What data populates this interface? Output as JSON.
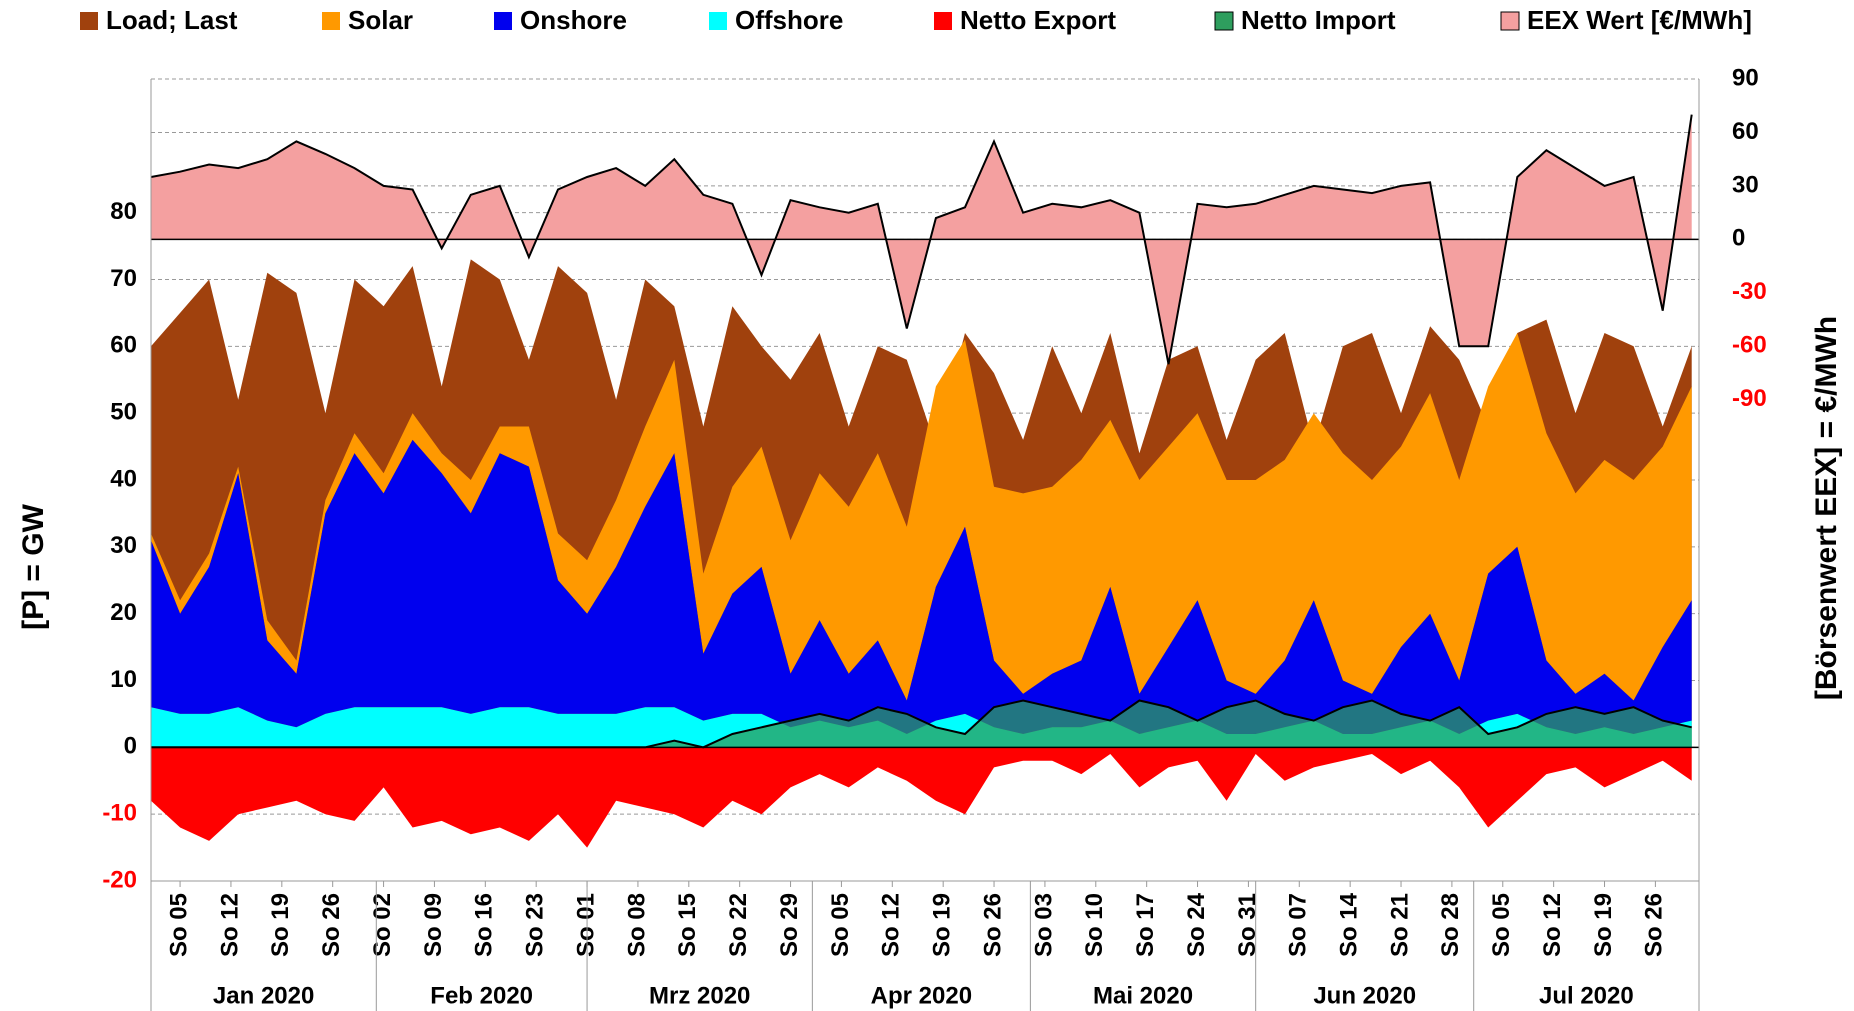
{
  "chart_data": {
    "type": "area",
    "x": [
      0,
      4,
      8,
      12,
      16,
      20,
      24,
      28,
      32,
      36,
      40,
      44,
      48,
      52,
      56,
      60,
      64,
      68,
      72,
      76,
      80,
      84,
      88,
      92,
      96,
      100,
      104,
      108,
      112,
      116,
      120,
      124,
      128,
      132,
      136,
      140,
      144,
      148,
      152,
      156,
      160,
      164,
      168,
      172,
      176,
      180,
      184,
      188,
      192,
      196,
      200,
      204,
      208,
      212
    ],
    "series": [
      {
        "name": "Load; Last",
        "color": "#a0410d",
        "values": [
          60,
          65,
          70,
          52,
          71,
          68,
          50,
          70,
          66,
          72,
          54,
          73,
          70,
          58,
          72,
          68,
          52,
          70,
          66,
          48,
          66,
          60,
          55,
          62,
          48,
          60,
          58,
          45,
          62,
          56,
          46,
          60,
          50,
          62,
          44,
          58,
          60,
          46,
          58,
          62,
          45,
          60,
          62,
          50,
          63,
          58,
          48,
          62,
          64,
          50,
          62,
          60,
          48,
          60
        ]
      },
      {
        "name": "Solar",
        "color": "#ff9900",
        "stacked": true,
        "values": [
          1,
          2,
          2,
          1,
          3,
          2,
          2,
          3,
          3,
          4,
          3,
          5,
          4,
          6,
          7,
          8,
          10,
          12,
          14,
          12,
          16,
          18,
          20,
          22,
          25,
          28,
          26,
          30,
          28,
          26,
          30,
          28,
          30,
          25,
          32,
          30,
          28,
          30,
          32,
          30,
          28,
          34,
          32,
          30,
          33,
          30,
          28,
          32,
          34,
          30,
          32,
          33,
          30,
          32
        ]
      },
      {
        "name": "Onshore",
        "color": "#0000ee",
        "stacked": true,
        "values": [
          25,
          15,
          22,
          35,
          12,
          8,
          30,
          38,
          32,
          40,
          35,
          30,
          38,
          36,
          20,
          15,
          22,
          30,
          38,
          10,
          18,
          22,
          8,
          15,
          8,
          12,
          5,
          20,
          28,
          10,
          6,
          8,
          10,
          20,
          6,
          12,
          18,
          8,
          6,
          10,
          18,
          8,
          6,
          12,
          16,
          8,
          22,
          25,
          10,
          6,
          8,
          5,
          12,
          18
        ]
      },
      {
        "name": "Offshore",
        "color": "#00ffff",
        "stacked": true,
        "values": [
          6,
          5,
          5,
          6,
          4,
          3,
          5,
          6,
          6,
          6,
          6,
          5,
          6,
          6,
          5,
          5,
          5,
          6,
          6,
          4,
          5,
          5,
          3,
          4,
          3,
          4,
          2,
          4,
          5,
          3,
          2,
          3,
          3,
          4,
          2,
          3,
          4,
          2,
          2,
          3,
          4,
          2,
          2,
          3,
          4,
          2,
          4,
          5,
          3,
          2,
          3,
          2,
          3,
          4
        ]
      },
      {
        "name": "Netto Export",
        "color": "#ff0000",
        "values": [
          -8,
          -12,
          -14,
          -10,
          -9,
          -8,
          -10,
          -11,
          -6,
          -12,
          -11,
          -13,
          -12,
          -14,
          -10,
          -15,
          -8,
          -9,
          -10,
          -12,
          -8,
          -10,
          -6,
          -4,
          -6,
          -3,
          -5,
          -8,
          -10,
          -3,
          -2,
          -2,
          -4,
          -1,
          -6,
          -3,
          -2,
          -8,
          -1,
          -5,
          -3,
          -2,
          -1,
          -4,
          -2,
          -6,
          -12,
          -8,
          -4,
          -3,
          -6,
          -4,
          -2,
          -5
        ]
      },
      {
        "name": "Netto Import",
        "color": "#2e9e5e",
        "line_color": "#000000",
        "values": [
          0,
          0,
          0,
          0,
          0,
          0,
          0,
          0,
          0,
          0,
          0,
          0,
          0,
          0,
          0,
          0,
          0,
          0,
          1,
          0,
          2,
          3,
          4,
          5,
          4,
          6,
          5,
          3,
          2,
          6,
          7,
          6,
          5,
          4,
          7,
          6,
          4,
          6,
          7,
          5,
          4,
          6,
          7,
          5,
          4,
          6,
          2,
          3,
          5,
          6,
          5,
          6,
          4,
          3
        ]
      },
      {
        "name": "EEX Wert [€/MWh]",
        "color": "#f4a0a0",
        "line_color": "#000000",
        "axis": "y2",
        "values": [
          35,
          38,
          42,
          40,
          45,
          55,
          48,
          40,
          30,
          28,
          -5,
          25,
          30,
          -10,
          28,
          35,
          40,
          30,
          45,
          25,
          20,
          -20,
          22,
          18,
          15,
          20,
          -50,
          12,
          18,
          55,
          15,
          20,
          18,
          22,
          15,
          -70,
          20,
          18,
          20,
          25,
          30,
          28,
          26,
          30,
          32,
          -60,
          -60,
          35,
          50,
          40,
          30,
          35,
          -40,
          70
        ]
      }
    ],
    "xlim": [
      0,
      213
    ],
    "xticks": [
      {
        "value": 4,
        "label": "So 05"
      },
      {
        "value": 11,
        "label": "So 12"
      },
      {
        "value": 18,
        "label": "So 19"
      },
      {
        "value": 25,
        "label": "So 26"
      },
      {
        "value": 32,
        "label": "So 02"
      },
      {
        "value": 39,
        "label": "So 09"
      },
      {
        "value": 46,
        "label": "So 16"
      },
      {
        "value": 53,
        "label": "So 23"
      },
      {
        "value": 60,
        "label": "So 01"
      },
      {
        "value": 67,
        "label": "So 08"
      },
      {
        "value": 74,
        "label": "So 15"
      },
      {
        "value": 81,
        "label": "So 22"
      },
      {
        "value": 88,
        "label": "So 29"
      },
      {
        "value": 95,
        "label": "So 05"
      },
      {
        "value": 102,
        "label": "So 12"
      },
      {
        "value": 109,
        "label": "So 19"
      },
      {
        "value": 116,
        "label": "So 26"
      },
      {
        "value": 123,
        "label": "So 03"
      },
      {
        "value": 130,
        "label": "So 10"
      },
      {
        "value": 137,
        "label": "So 17"
      },
      {
        "value": 144,
        "label": "So 24"
      },
      {
        "value": 151,
        "label": "So 31"
      },
      {
        "value": 158,
        "label": "So 07"
      },
      {
        "value": 165,
        "label": "So 14"
      },
      {
        "value": 172,
        "label": "So 21"
      },
      {
        "value": 179,
        "label": "So 28"
      },
      {
        "value": 186,
        "label": "So 05"
      },
      {
        "value": 193,
        "label": "So 12"
      },
      {
        "value": 200,
        "label": "So 19"
      },
      {
        "value": 207,
        "label": "So 26"
      }
    ],
    "months": [
      {
        "label": "Jan 2020",
        "start": 0,
        "end": 31
      },
      {
        "label": "Feb 2020",
        "start": 31,
        "end": 60
      },
      {
        "label": "Mrz 2020",
        "start": 60,
        "end": 91
      },
      {
        "label": "Apr 2020",
        "start": 91,
        "end": 121
      },
      {
        "label": "Mai 2020",
        "start": 121,
        "end": 152
      },
      {
        "label": "Jun 2020",
        "start": 152,
        "end": 182
      },
      {
        "label": "Jul 2020",
        "start": 182,
        "end": 213
      }
    ],
    "ylim": [
      -20,
      100
    ],
    "yticks": [
      -20,
      -10,
      0,
      10,
      20,
      30,
      40,
      50,
      60,
      70,
      80
    ],
    "y2lim": [
      -360,
      90
    ],
    "y2ticks": [
      -90,
      -60,
      -30,
      0,
      30,
      60,
      90
    ],
    "y_label": "[P] = GW",
    "y2_label": "[Börsenwert  EEX]   = €/MWh",
    "negative_tick_color": "#ff0000",
    "grid": true,
    "legend": "top"
  }
}
